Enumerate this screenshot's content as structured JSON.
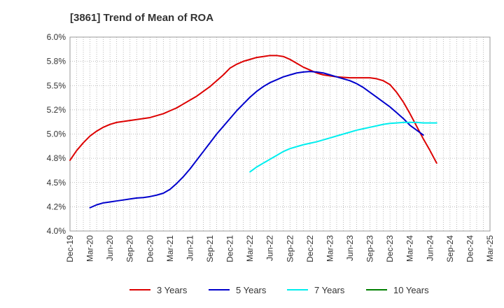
{
  "chart_data": {
    "type": "line",
    "title": "[3861]  Trend of Mean of ROA",
    "xlabel": "",
    "ylabel": "",
    "y_unit": "%",
    "ylim": [
      4.0,
      6.0
    ],
    "y_ticks": [
      "4.0%",
      "4.2%",
      "4.5%",
      "4.8%",
      "5.0%",
      "5.2%",
      "5.5%",
      "5.8%",
      "6.0%"
    ],
    "y_tick_values": [
      4.0,
      4.25,
      4.5,
      4.75,
      5.0,
      5.25,
      5.5,
      5.75,
      6.0
    ],
    "x_ticks": [
      "Dec-19",
      "Mar-20",
      "Jun-20",
      "Sep-20",
      "Dec-20",
      "Mar-21",
      "Jun-21",
      "Sep-21",
      "Dec-21",
      "Mar-22",
      "Jun-22",
      "Sep-22",
      "Dec-22",
      "Mar-23",
      "Jun-23",
      "Sep-23",
      "Dec-23",
      "Mar-24",
      "Jun-24",
      "Sep-24",
      "Dec-24",
      "Mar-25"
    ],
    "grid": true,
    "legend_position": "bottom",
    "series": [
      {
        "name": "3 Years",
        "color": "#dd0000",
        "start_index": 0,
        "values": [
          4.73,
          4.83,
          4.91,
          4.98,
          5.03,
          5.07,
          5.1,
          5.12,
          5.13,
          5.14,
          5.15,
          5.16,
          5.17,
          5.19,
          5.21,
          5.24,
          5.27,
          5.31,
          5.35,
          5.39,
          5.44,
          5.49,
          5.55,
          5.61,
          5.68,
          5.72,
          5.75,
          5.77,
          5.79,
          5.8,
          5.81,
          5.81,
          5.8,
          5.77,
          5.73,
          5.69,
          5.66,
          5.63,
          5.61,
          5.6,
          5.59,
          5.585,
          5.58,
          5.58,
          5.58,
          5.58,
          5.57,
          5.55,
          5.51,
          5.43,
          5.33,
          5.21,
          5.08,
          4.95,
          4.83,
          4.7
        ]
      },
      {
        "name": "5 Years",
        "color": "#0000cc",
        "start_index": 3,
        "values": [
          4.24,
          4.27,
          4.29,
          4.3,
          4.31,
          4.32,
          4.33,
          4.34,
          4.345,
          4.355,
          4.37,
          4.39,
          4.43,
          4.49,
          4.56,
          4.64,
          4.73,
          4.82,
          4.91,
          5.0,
          5.08,
          5.16,
          5.24,
          5.31,
          5.38,
          5.44,
          5.49,
          5.53,
          5.56,
          5.59,
          5.61,
          5.63,
          5.64,
          5.645,
          5.64,
          5.63,
          5.61,
          5.59,
          5.57,
          5.55,
          5.52,
          5.48,
          5.43,
          5.38,
          5.33,
          5.28,
          5.22,
          5.16,
          5.09,
          5.04,
          4.99
        ]
      },
      {
        "name": "7 Years",
        "color": "#00eeee",
        "start_index": 27,
        "values": [
          4.61,
          4.66,
          4.7,
          4.74,
          4.78,
          4.82,
          4.85,
          4.87,
          4.89,
          4.905,
          4.92,
          4.94,
          4.96,
          4.98,
          5.0,
          5.02,
          5.04,
          5.055,
          5.07,
          5.085,
          5.1,
          5.11,
          5.115,
          5.12,
          5.12,
          5.12,
          5.115,
          5.115,
          5.115
        ]
      },
      {
        "name": "10 Years",
        "color": "#008000",
        "start_index": 0,
        "values": []
      }
    ]
  }
}
